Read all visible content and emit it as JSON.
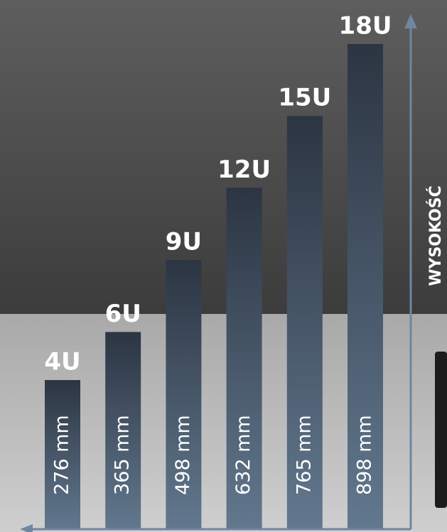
{
  "chart_data": {
    "type": "bar",
    "axis_label": "WYSOKOŚĆ",
    "categories": [
      "4U",
      "6U",
      "9U",
      "12U",
      "15U",
      "18U"
    ],
    "values": [
      276,
      365,
      498,
      632,
      765,
      898
    ],
    "value_labels": [
      "276 mm",
      "365 mm",
      "498 mm",
      "632 mm",
      "765 mm",
      "898 mm"
    ],
    "color": "#2c3542"
  }
}
